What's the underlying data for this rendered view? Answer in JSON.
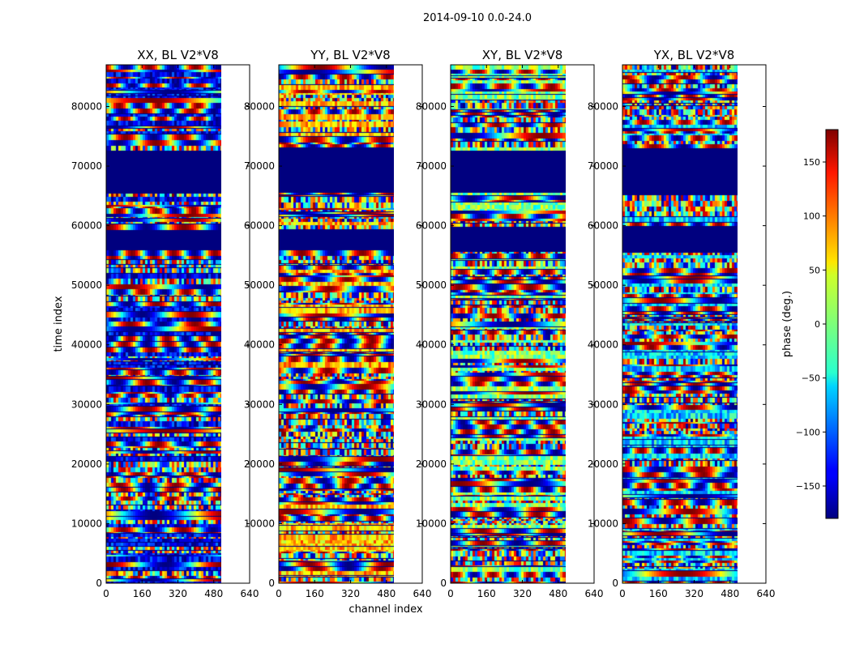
{
  "chart_data": {
    "type": "heatmap",
    "suptitle": "2014-09-10 0.0-24.0",
    "xlabel": "channel index",
    "ylabel": "time index",
    "xlim": [
      0,
      640
    ],
    "ylim": [
      0,
      87000
    ],
    "xticks": [
      0,
      160,
      320,
      480,
      640
    ],
    "yticks": [
      0,
      10000,
      20000,
      30000,
      40000,
      50000,
      60000,
      70000,
      80000
    ],
    "data_channel_extent": 512,
    "panels": [
      {
        "title": "XX, BL V2*V8",
        "polarization": "XX"
      },
      {
        "title": "YY, BL V2*V8",
        "polarization": "YY"
      },
      {
        "title": "XY, BL V2*V8",
        "polarization": "XY"
      },
      {
        "title": "YX, BL V2*V8",
        "polarization": "YX"
      }
    ],
    "flagged_time_ranges": [
      [
        56000,
        60000
      ],
      [
        66000,
        73000
      ]
    ],
    "colorbar": {
      "label": "phase (deg.)",
      "range": [
        -180,
        180
      ],
      "ticks": [
        -150,
        -100,
        -50,
        0,
        50,
        100,
        150
      ],
      "tick_labels": [
        "−150",
        "−100",
        "−50",
        "0",
        "50",
        "100",
        "150"
      ],
      "colormap": "jet"
    }
  }
}
